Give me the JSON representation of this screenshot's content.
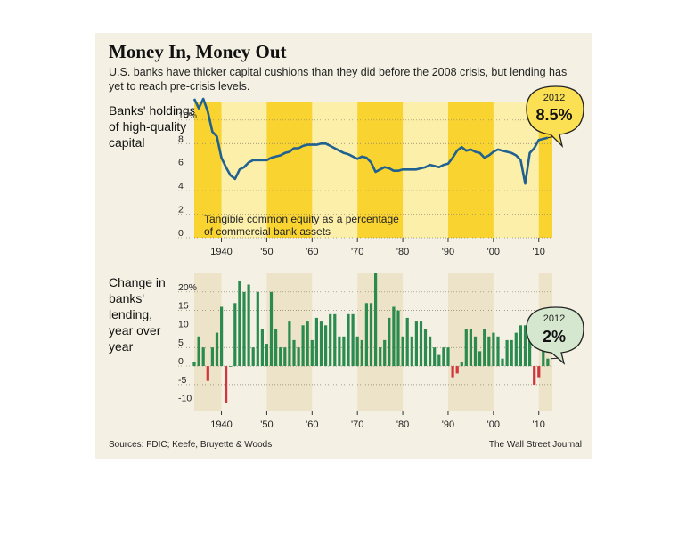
{
  "header": {
    "title": "Money In, Money Out",
    "subtitle": "U.S. banks have thicker capital cushions than they did before the 2008 crisis, but lending has yet to reach pre-crisis levels."
  },
  "footer": {
    "source": "Sources: FDIC; Keefe, Bruyette & Woods",
    "credit": "The Wall Street Journal"
  },
  "colors": {
    "background": "#f4f1e4",
    "yellow_band": "#f9d330",
    "light_yellow": "#fbefaa",
    "tan_band": "#ece3c8",
    "line": "#1f6190",
    "bar_positive": "#2b8a4e",
    "bar_negative": "#d2353a",
    "callout_1": "#fbe053",
    "callout_2": "#d5e8cf"
  },
  "chart_data": [
    {
      "type": "line",
      "title": "Banks' holdings of high-quality capital",
      "annotation": "Tangible common equity as a percentage of commercial bank assets",
      "x_tick_labels": [
        "1940",
        "'50",
        "'60",
        "'70",
        "'80",
        "'90",
        "'00",
        "'10"
      ],
      "x_ticks": [
        1940,
        1950,
        1960,
        1970,
        1980,
        1990,
        2000,
        2010
      ],
      "y_tick_labels": [
        "0",
        "2",
        "4",
        "6",
        "8",
        "10%"
      ],
      "y_ticks": [
        0,
        2,
        4,
        6,
        8,
        10
      ],
      "ylim": [
        0,
        11.5
      ],
      "xlim": [
        1934,
        2013
      ],
      "highlight": {
        "year": "2012",
        "value": "8.5%"
      },
      "x": [
        1934,
        1935,
        1936,
        1937,
        1938,
        1939,
        1940,
        1941,
        1942,
        1943,
        1944,
        1945,
        1946,
        1947,
        1948,
        1949,
        1950,
        1951,
        1952,
        1953,
        1954,
        1955,
        1956,
        1957,
        1958,
        1959,
        1960,
        1961,
        1962,
        1963,
        1964,
        1965,
        1966,
        1967,
        1968,
        1969,
        1970,
        1971,
        1972,
        1973,
        1974,
        1975,
        1976,
        1977,
        1978,
        1979,
        1980,
        1981,
        1982,
        1983,
        1984,
        1985,
        1986,
        1987,
        1988,
        1989,
        1990,
        1991,
        1992,
        1993,
        1994,
        1995,
        1996,
        1997,
        1998,
        1999,
        2000,
        2001,
        2002,
        2003,
        2004,
        2005,
        2006,
        2007,
        2008,
        2009,
        2010,
        2011,
        2012
      ],
      "y": [
        11.8,
        11.0,
        11.8,
        10.7,
        9.0,
        8.6,
        6.8,
        6.0,
        5.3,
        5.0,
        5.8,
        6.0,
        6.4,
        6.6,
        6.6,
        6.6,
        6.6,
        6.8,
        6.9,
        7.0,
        7.2,
        7.3,
        7.6,
        7.6,
        7.8,
        7.9,
        7.9,
        7.9,
        8.0,
        8.0,
        7.8,
        7.6,
        7.4,
        7.2,
        7.1,
        6.9,
        6.7,
        6.9,
        6.8,
        6.4,
        5.6,
        5.8,
        6.0,
        5.9,
        5.7,
        5.7,
        5.8,
        5.8,
        5.8,
        5.8,
        5.9,
        6.0,
        6.2,
        6.1,
        6.0,
        6.2,
        6.3,
        6.8,
        7.4,
        7.7,
        7.4,
        7.5,
        7.3,
        7.2,
        6.8,
        7.0,
        7.3,
        7.5,
        7.4,
        7.3,
        7.2,
        7.0,
        6.6,
        4.6,
        7.2,
        7.6,
        8.3,
        8.4,
        8.5
      ]
    },
    {
      "type": "bar",
      "title": "Change in banks' lending, year over year",
      "x_tick_labels": [
        "1940",
        "'50",
        "'60",
        "'70",
        "'80",
        "'90",
        "'00",
        "'10"
      ],
      "x_ticks": [
        1940,
        1950,
        1960,
        1970,
        1980,
        1990,
        2000,
        2010
      ],
      "y_tick_labels": [
        "-10",
        "-5",
        "0",
        "5",
        "10",
        "15",
        "20%"
      ],
      "y_ticks": [
        -10,
        -5,
        0,
        5,
        10,
        15,
        20
      ],
      "ylim": [
        -12,
        25
      ],
      "xlim": [
        1934,
        2013
      ],
      "highlight": {
        "year": "2012",
        "value": "2%"
      },
      "x": [
        1934,
        1935,
        1936,
        1937,
        1938,
        1939,
        1940,
        1941,
        1942,
        1943,
        1944,
        1945,
        1946,
        1947,
        1948,
        1949,
        1950,
        1951,
        1952,
        1953,
        1954,
        1955,
        1956,
        1957,
        1958,
        1959,
        1960,
        1961,
        1962,
        1963,
        1964,
        1965,
        1966,
        1967,
        1968,
        1969,
        1970,
        1971,
        1972,
        1973,
        1974,
        1975,
        1976,
        1977,
        1978,
        1979,
        1980,
        1981,
        1982,
        1983,
        1984,
        1985,
        1986,
        1987,
        1988,
        1989,
        1990,
        1991,
        1992,
        1993,
        1994,
        1995,
        1996,
        1997,
        1998,
        1999,
        2000,
        2001,
        2002,
        2003,
        2004,
        2005,
        2006,
        2007,
        2008,
        2009,
        2010,
        2011,
        2012
      ],
      "values": [
        1,
        8,
        5,
        -4,
        5,
        9,
        16,
        -10,
        0,
        17,
        23,
        20,
        22,
        5,
        20,
        10,
        6,
        20,
        10,
        5,
        5,
        12,
        7,
        5,
        11,
        12,
        7,
        13,
        12,
        11,
        14,
        14,
        8,
        8,
        14,
        14,
        8,
        7,
        17,
        17,
        25,
        5,
        7,
        13,
        16,
        15,
        8,
        13,
        8,
        12,
        12,
        10,
        8,
        5,
        3,
        5,
        5,
        -3,
        -2,
        1,
        10,
        10,
        8,
        4,
        10,
        8,
        9,
        8,
        2,
        7,
        7,
        9,
        11,
        11,
        11,
        -5,
        -3,
        5,
        2
      ]
    }
  ]
}
